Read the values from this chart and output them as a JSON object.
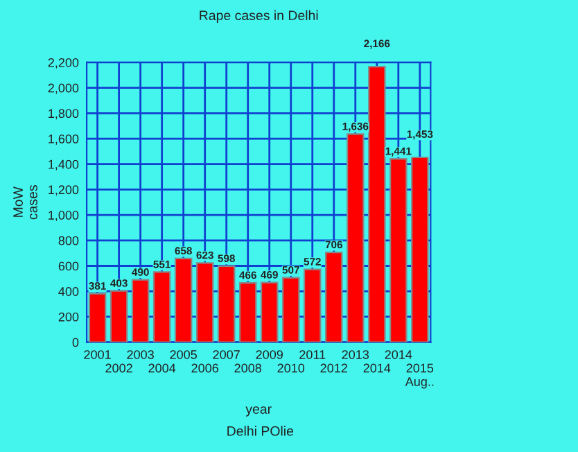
{
  "chart_data": {
    "type": "bar",
    "title": "Rape cases in Delhi",
    "xlabel": "year",
    "ylabel": "MoW\ncases",
    "annotations": [
      "Delhi POlie"
    ],
    "categories": [
      "2001",
      "2002",
      "2003",
      "2004",
      "2005",
      "2006",
      "2007",
      "2008",
      "2009",
      "2010",
      "2011",
      "2012",
      "2013",
      "2014",
      "2014",
      "2015\nAug.."
    ],
    "values": [
      381,
      403,
      490,
      551,
      658,
      623,
      598,
      466,
      469,
      507,
      572,
      706,
      1636,
      2166,
      1441,
      1453
    ],
    "value_labels": [
      "381",
      "403",
      "490",
      "551",
      "658",
      "623",
      "598",
      "466",
      "469",
      "507",
      "572",
      "706",
      "1,636",
      "2,166",
      "1,441",
      "1,453"
    ],
    "color": "#ff0000",
    "ylim": [
      0,
      2200
    ],
    "yticks": [
      0,
      {
        "value": 200,
        "label": "200"
      },
      {
        "value": 400,
        "label": "400"
      },
      {
        "value": 600,
        "label": "600"
      },
      {
        "value": 800,
        "label": "800"
      },
      {
        "value": 1000,
        "label": "1,000"
      },
      {
        "value": 1200,
        "label": "1,200"
      },
      {
        "value": 1400,
        "label": "1,400"
      },
      {
        "value": 1600,
        "label": "1,600"
      },
      {
        "value": 1800,
        "label": "1,800"
      },
      {
        "value": 2000,
        "label": "2,000"
      },
      {
        "value": 2200,
        "label": "2,200"
      }
    ],
    "grid": true
  }
}
